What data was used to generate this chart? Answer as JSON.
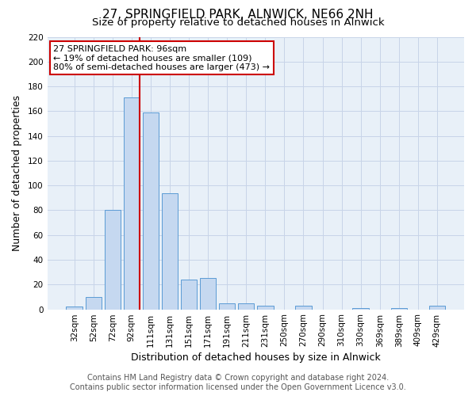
{
  "title": "27, SPRINGFIELD PARK, ALNWICK, NE66 2NH",
  "subtitle": "Size of property relative to detached houses in Alnwick",
  "xlabel": "Distribution of detached houses by size in Alnwick",
  "ylabel": "Number of detached properties",
  "bar_labels": [
    "32sqm",
    "52sqm",
    "72sqm",
    "92sqm",
    "111sqm",
    "131sqm",
    "151sqm",
    "171sqm",
    "191sqm",
    "211sqm",
    "231sqm",
    "250sqm",
    "270sqm",
    "290sqm",
    "310sqm",
    "330sqm",
    "369sqm",
    "389sqm",
    "409sqm",
    "429sqm"
  ],
  "bar_values": [
    2,
    10,
    80,
    171,
    159,
    94,
    24,
    25,
    5,
    5,
    3,
    0,
    3,
    0,
    0,
    1,
    0,
    1,
    0,
    3
  ],
  "bar_color": "#c5d8f0",
  "bar_edge_color": "#5b9bd5",
  "ylim": [
    0,
    220
  ],
  "yticks": [
    0,
    20,
    40,
    60,
    80,
    100,
    120,
    140,
    160,
    180,
    200,
    220
  ],
  "property_line_bar_index": 3,
  "property_line_color": "#cc0000",
  "annotation_title": "27 SPRINGFIELD PARK: 96sqm",
  "annotation_line1": "← 19% of detached houses are smaller (109)",
  "annotation_line2": "80% of semi-detached houses are larger (473) →",
  "annotation_box_color": "#ffffff",
  "annotation_box_edge": "#cc0000",
  "footer_line1": "Contains HM Land Registry data © Crown copyright and database right 2024.",
  "footer_line2": "Contains public sector information licensed under the Open Government Licence v3.0.",
  "background_color": "#ffffff",
  "plot_bg_color": "#e8f0f8",
  "grid_color": "#c8d4e8",
  "title_fontsize": 11,
  "subtitle_fontsize": 9.5,
  "axis_label_fontsize": 9,
  "tick_fontsize": 7.5,
  "annotation_fontsize": 8,
  "footer_fontsize": 7
}
